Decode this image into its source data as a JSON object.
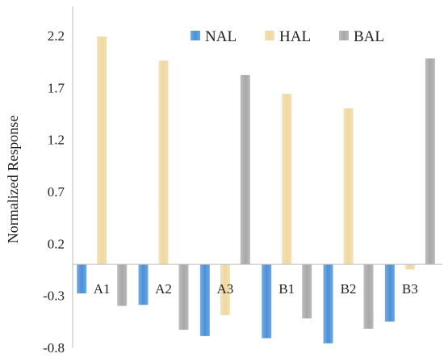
{
  "chart_data": {
    "type": "bar",
    "title": "",
    "xlabel": "",
    "ylabel": "Normalized Response",
    "categories": [
      "A1",
      "A2",
      "A3",
      "B1",
      "B2",
      "B3"
    ],
    "series": [
      {
        "name": "NAL",
        "color": "#4a90d9",
        "values": [
          -0.28,
          -0.39,
          -0.69,
          -0.71,
          -0.76,
          -0.55
        ]
      },
      {
        "name": "HAL",
        "color": "#f0d8a0",
        "values": [
          2.19,
          1.96,
          -0.49,
          1.64,
          1.5,
          -0.05
        ]
      },
      {
        "name": "BAL",
        "color": "#a8a8a8",
        "values": [
          -0.4,
          -0.63,
          1.82,
          -0.52,
          -0.62,
          1.98
        ]
      }
    ],
    "ylim": [
      -0.8,
      2.5
    ],
    "yticks": [
      -0.8,
      -0.3,
      0.2,
      0.7,
      1.2,
      1.7,
      2.2
    ],
    "ytick_labels": [
      "-0.8",
      "-0.3",
      "0.2",
      "0.7",
      "1.2",
      "1.7",
      "2.2"
    ],
    "grid": false,
    "legend_position": "top-right"
  }
}
